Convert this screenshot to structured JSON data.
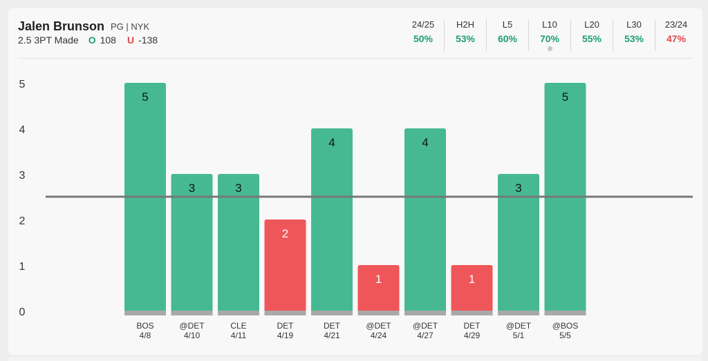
{
  "player": {
    "name": "Jalen Brunson",
    "meta": "PG | NYK",
    "prop": "2.5 3PT Made",
    "over_mark": "O",
    "over_odds": "108",
    "under_mark": "U",
    "under_odds": "-138"
  },
  "stats": [
    {
      "label": "24/25",
      "value": "50%",
      "color": "#1e9e6e"
    },
    {
      "label": "H2H",
      "value": "53%",
      "color": "#1e9e6e"
    },
    {
      "label": "L5",
      "value": "60%",
      "color": "#1e9e6e"
    },
    {
      "label": "L10",
      "value": "70%",
      "color": "#1e9e6e",
      "active": true
    },
    {
      "label": "L20",
      "value": "55%",
      "color": "#1e9e6e"
    },
    {
      "label": "L30",
      "value": "53%",
      "color": "#1e9e6e"
    },
    {
      "label": "23/24",
      "value": "47%",
      "color": "#e04848"
    }
  ],
  "chart_data": {
    "type": "bar",
    "categories": [
      {
        "opponent": "BOS",
        "date": "4/8"
      },
      {
        "opponent": "@DET",
        "date": "4/10"
      },
      {
        "opponent": "CLE",
        "date": "4/11"
      },
      {
        "opponent": "DET",
        "date": "4/19"
      },
      {
        "opponent": "DET",
        "date": "4/21"
      },
      {
        "opponent": "@DET",
        "date": "4/24"
      },
      {
        "opponent": "@DET",
        "date": "4/27"
      },
      {
        "opponent": "DET",
        "date": "4/29"
      },
      {
        "opponent": "@DET",
        "date": "5/1"
      },
      {
        "opponent": "@BOS",
        "date": "5/5"
      }
    ],
    "values": [
      5,
      3,
      3,
      2,
      4,
      1,
      4,
      1,
      3,
      5
    ],
    "line": 2.5,
    "ylim": [
      0,
      5
    ],
    "yticks": [
      0,
      1,
      2,
      3,
      4,
      5
    ],
    "colors": {
      "over": "#46b993",
      "under": "#ef5659",
      "base": "#a9a9a9",
      "line": "#777777"
    }
  }
}
